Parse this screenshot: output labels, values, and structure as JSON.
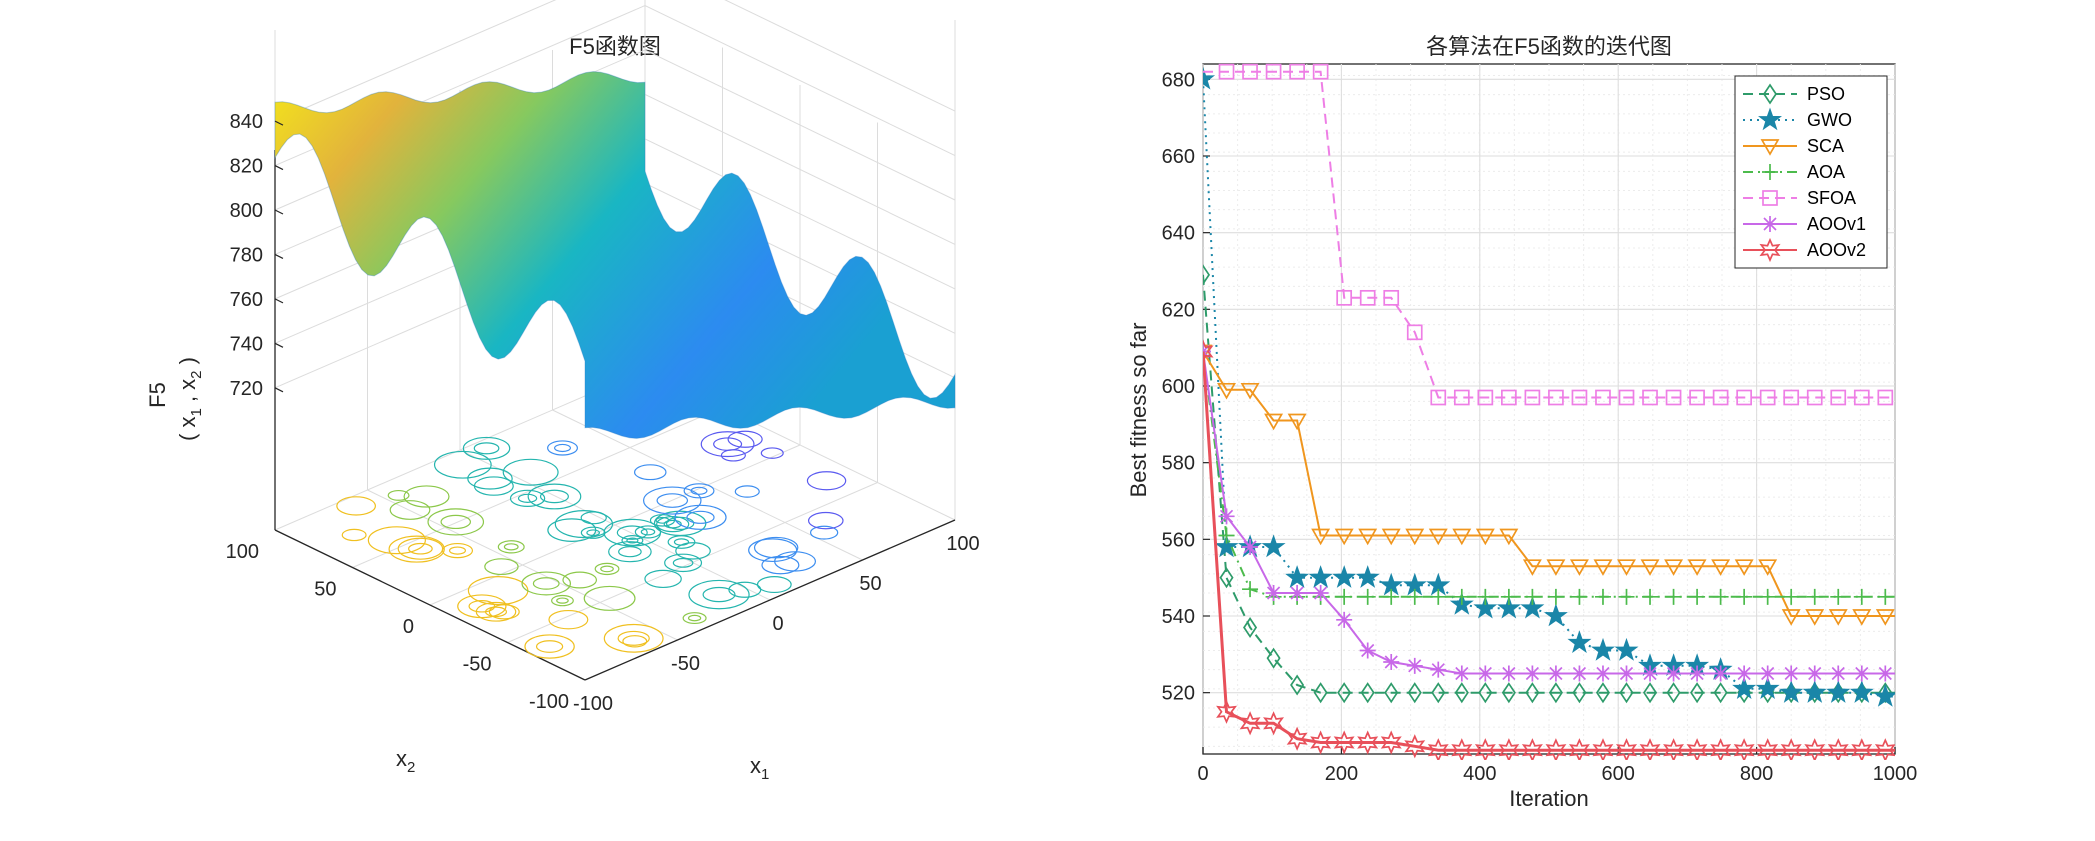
{
  "left_panel": {
    "title": "F5函数图",
    "zlabel_line1": "F5",
    "zlabel_line2": "( x",
    "zlabel_sub1": "1",
    "zlabel_comma": " , x",
    "zlabel_sub2": "2",
    "zlabel_close": " )",
    "x1_label": "x",
    "x1_sub": "1",
    "x2_label": "x",
    "x2_sub": "2"
  },
  "chart_data": [
    {
      "type": "surface",
      "title": "F5函数图",
      "xlabel": "x1",
      "ylabel": "x2",
      "zlabel": "F5 (x1, x2)",
      "x_range": [
        -100,
        100
      ],
      "y_range": [
        -100,
        100
      ],
      "z_range": [
        710,
        845
      ],
      "x_ticks": [
        "-100",
        "-50",
        "0",
        "50",
        "100"
      ],
      "y_ticks": [
        "-100",
        "-50",
        "0",
        "50",
        "100"
      ],
      "z_ticks": [
        "720",
        "740",
        "760",
        "780",
        "800",
        "820",
        "840"
      ],
      "colormap": [
        "#3e26a8",
        "#2d8cf4",
        "#12beb9",
        "#7ccd5c",
        "#fdbb2d",
        "#f9fb0e"
      ],
      "contour_below": true,
      "grid": true
    },
    {
      "type": "line",
      "title": "各算法在F5函数的迭代图",
      "xlabel": "Iteration",
      "ylabel": "Best fitness so far",
      "xlim": [
        0,
        1000
      ],
      "ylim": [
        504,
        684
      ],
      "x_ticks": [
        0,
        200,
        400,
        600,
        800,
        1000
      ],
      "y_ticks": [
        520,
        540,
        560,
        580,
        600,
        620,
        640,
        660,
        680
      ],
      "grid": true,
      "legend_position": "top-right",
      "series": [
        {
          "name": "PSO",
          "color": "#2e9b6a",
          "marker": "diamond",
          "dash": "10,6",
          "points": [
            [
              0,
              629
            ],
            [
              34,
              550
            ],
            [
              68,
              537
            ],
            [
              102,
              529
            ],
            [
              136,
              522
            ],
            [
              170,
              520
            ],
            [
              1000,
              520
            ]
          ]
        },
        {
          "name": "GWO",
          "color": "#1a86a8",
          "marker": "star",
          "dash": "2,5",
          "points": [
            [
              0,
              680
            ],
            [
              34,
              558
            ],
            [
              68,
              558
            ],
            [
              102,
              558
            ],
            [
              136,
              550
            ],
            [
              170,
              550
            ],
            [
              204,
              550
            ],
            [
              238,
              550
            ],
            [
              272,
              548
            ],
            [
              306,
              548
            ],
            [
              340,
              548
            ],
            [
              374,
              543
            ],
            [
              408,
              542
            ],
            [
              442,
              542
            ],
            [
              476,
              542
            ],
            [
              510,
              540
            ],
            [
              544,
              533
            ],
            [
              578,
              531
            ],
            [
              612,
              531
            ],
            [
              646,
              527
            ],
            [
              680,
              527
            ],
            [
              714,
              527
            ],
            [
              748,
              526
            ],
            [
              782,
              521
            ],
            [
              816,
              521
            ],
            [
              850,
              520
            ],
            [
              884,
              520
            ],
            [
              918,
              520
            ],
            [
              952,
              520
            ],
            [
              986,
              519
            ],
            [
              1000,
              519
            ]
          ]
        },
        {
          "name": "SCA",
          "color": "#f0961e",
          "marker": "triangle-down",
          "dash": "",
          "points": [
            [
              0,
              609
            ],
            [
              34,
              599
            ],
            [
              68,
              599
            ],
            [
              102,
              591
            ],
            [
              136,
              591
            ],
            [
              170,
              561
            ],
            [
              204,
              561
            ],
            [
              238,
              561
            ],
            [
              272,
              561
            ],
            [
              306,
              561
            ],
            [
              340,
              561
            ],
            [
              374,
              561
            ],
            [
              408,
              561
            ],
            [
              442,
              561
            ],
            [
              476,
              553
            ],
            [
              510,
              553
            ],
            [
              544,
              553
            ],
            [
              578,
              553
            ],
            [
              612,
              553
            ],
            [
              646,
              553
            ],
            [
              680,
              553
            ],
            [
              714,
              553
            ],
            [
              748,
              553
            ],
            [
              782,
              553
            ],
            [
              816,
              553
            ],
            [
              850,
              540
            ],
            [
              884,
              540
            ],
            [
              918,
              540
            ],
            [
              952,
              540
            ],
            [
              986,
              540
            ],
            [
              1000,
              540
            ]
          ]
        },
        {
          "name": "AOA",
          "color": "#4cbb4c",
          "marker": "plus",
          "dash": "10,5,2,5",
          "points": [
            [
              0,
              609
            ],
            [
              34,
              561
            ],
            [
              68,
              547
            ],
            [
              102,
              545
            ],
            [
              1000,
              545
            ]
          ]
        },
        {
          "name": "SFOA",
          "color": "#ee7ee5",
          "marker": "square",
          "dash": "10,6",
          "points": [
            [
              0,
              682
            ],
            [
              34,
              682
            ],
            [
              68,
              682
            ],
            [
              102,
              682
            ],
            [
              136,
              682
            ],
            [
              170,
              682
            ],
            [
              204,
              623
            ],
            [
              238,
              623
            ],
            [
              272,
              623
            ],
            [
              306,
              614
            ],
            [
              340,
              597
            ],
            [
              1000,
              597
            ]
          ]
        },
        {
          "name": "AOOv1",
          "color": "#c868e8",
          "marker": "asterisk",
          "dash": "",
          "points": [
            [
              0,
              609
            ],
            [
              34,
              566
            ],
            [
              68,
              558
            ],
            [
              102,
              546
            ],
            [
              136,
              546
            ],
            [
              170,
              546
            ],
            [
              204,
              539
            ],
            [
              238,
              531
            ],
            [
              272,
              528
            ],
            [
              306,
              527
            ],
            [
              340,
              526
            ],
            [
              374,
              525
            ],
            [
              1000,
              525
            ]
          ]
        },
        {
          "name": "AOOv2",
          "color": "#e8505a",
          "marker": "hexagram",
          "dash": "",
          "points": [
            [
              0,
              609
            ],
            [
              34,
              515
            ],
            [
              68,
              512
            ],
            [
              102,
              512
            ],
            [
              136,
              508
            ],
            [
              170,
              507
            ],
            [
              204,
              507
            ],
            [
              238,
              507
            ],
            [
              272,
              507
            ],
            [
              306,
              506
            ],
            [
              340,
              505
            ],
            [
              1000,
              505
            ]
          ]
        }
      ]
    }
  ]
}
